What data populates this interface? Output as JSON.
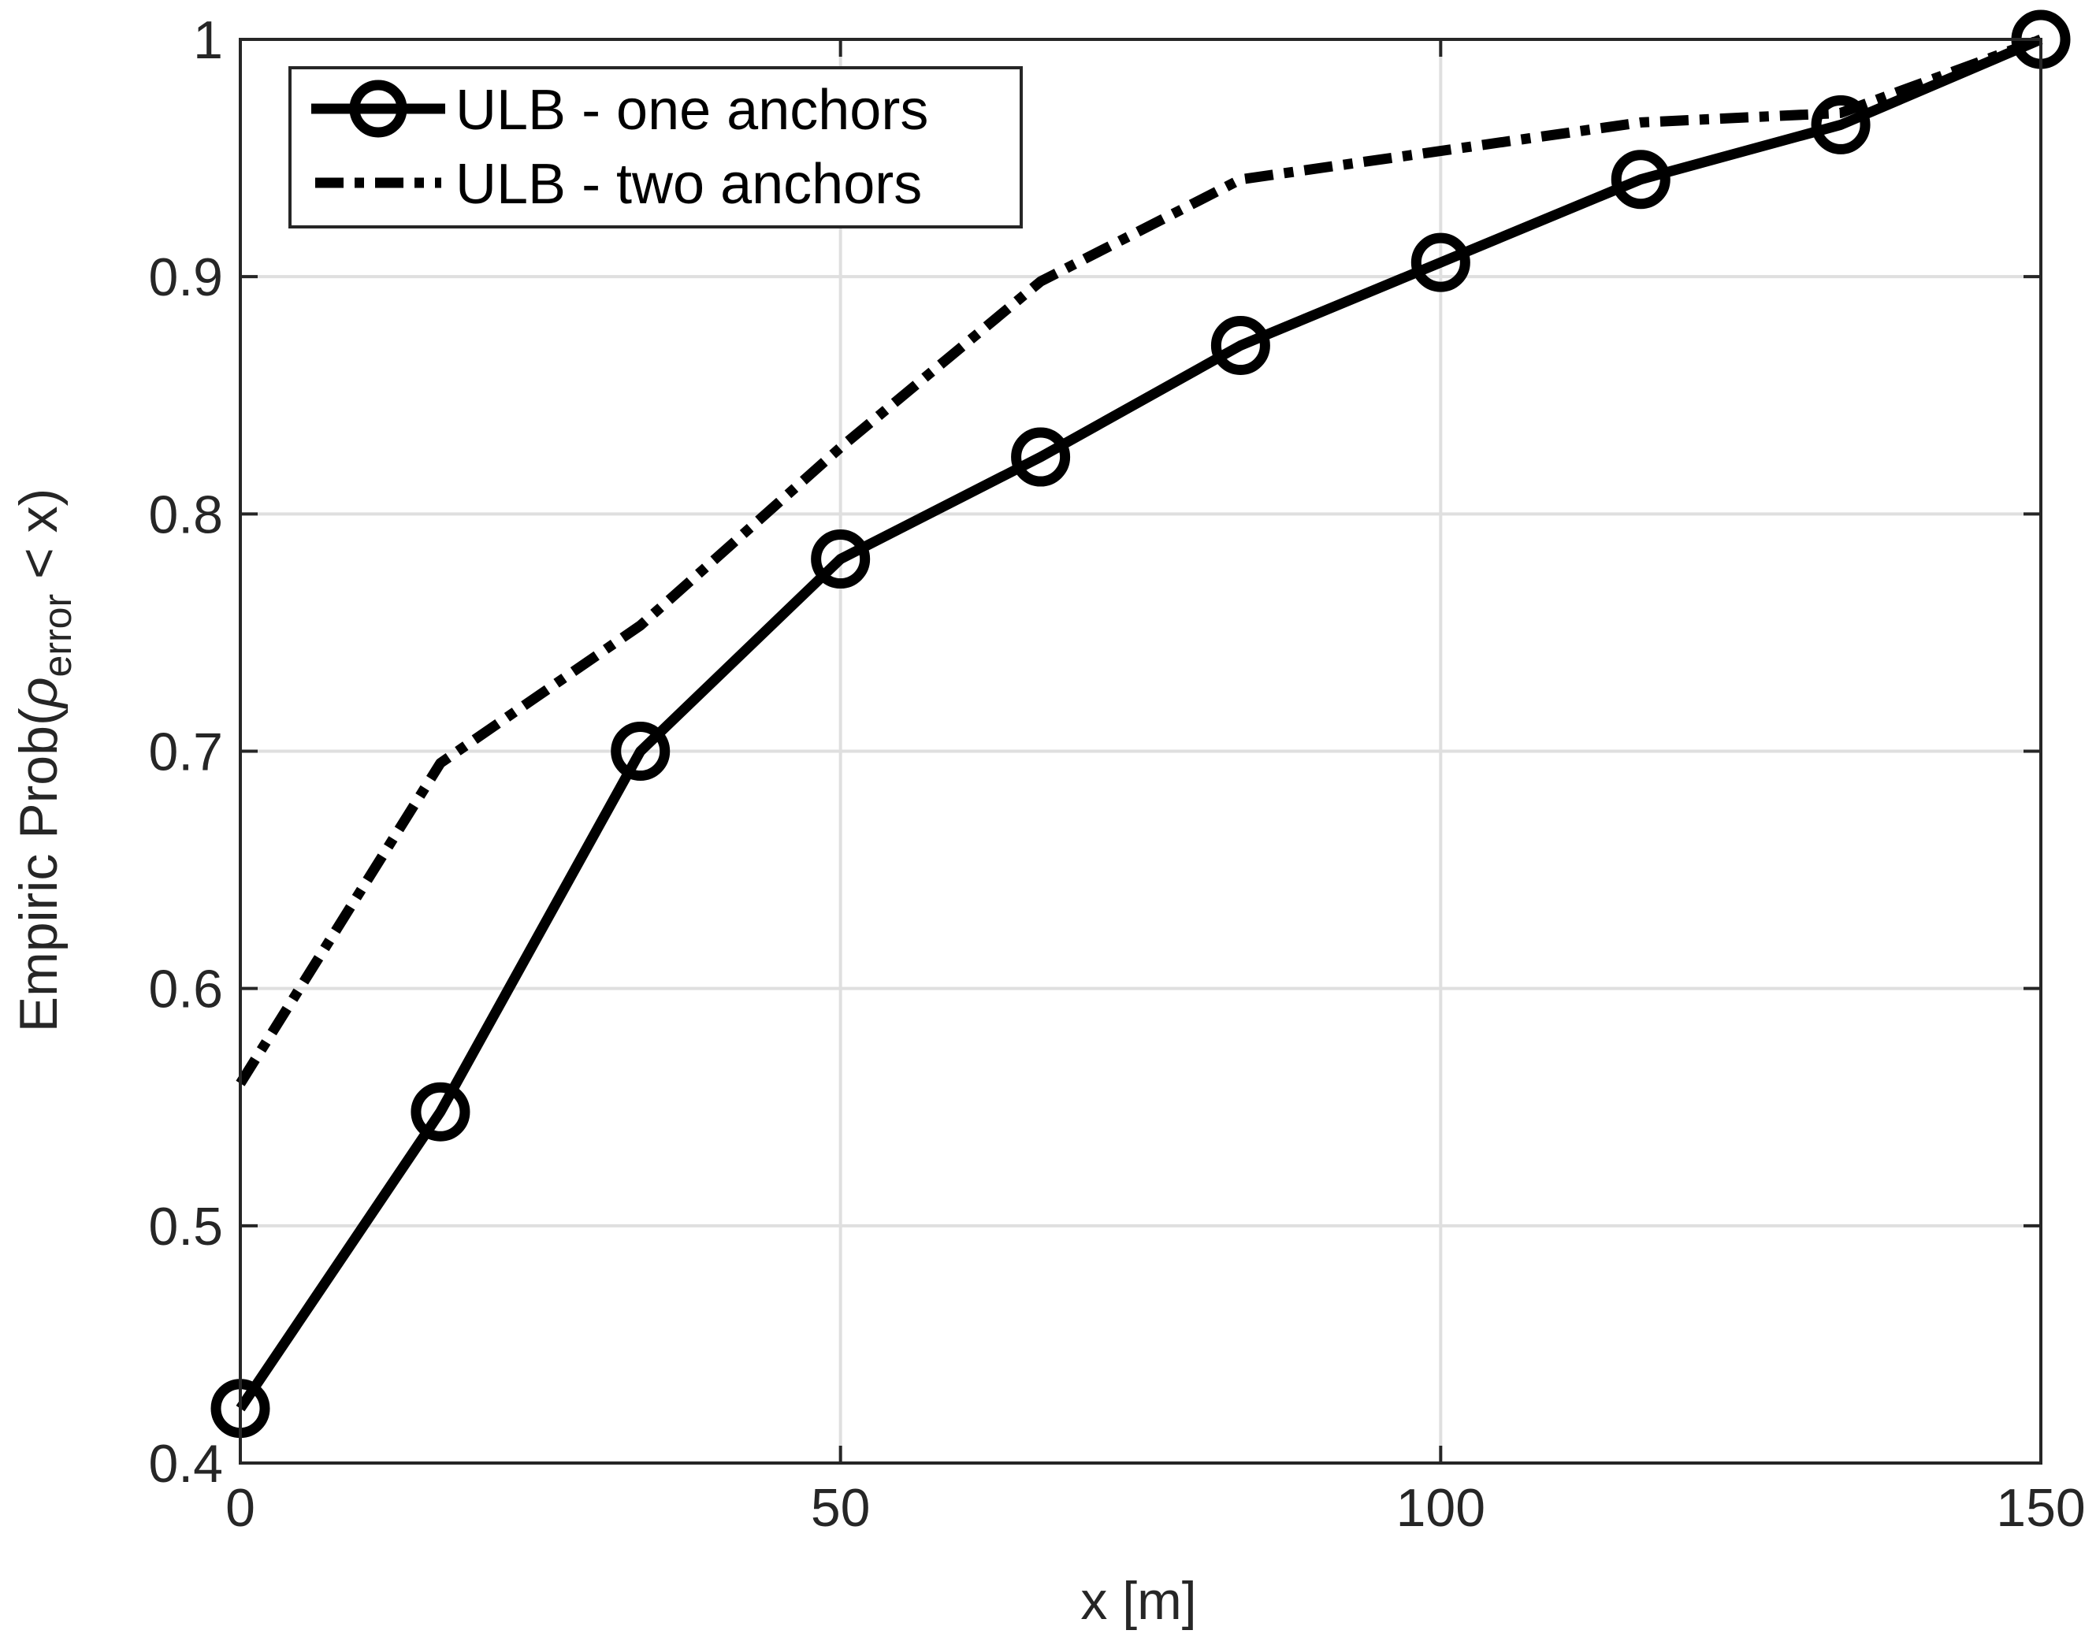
{
  "chart_data": {
    "type": "line",
    "title": "",
    "xlabel": "x [m]",
    "ylabel": {
      "prefix": "Empiric Prob(",
      "symbol": "ρ",
      "subscript": "error",
      "suffix": " < x)"
    },
    "xlim": [
      0,
      150
    ],
    "ylim": [
      0.4,
      1.0
    ],
    "xticks": [
      0,
      50,
      100,
      150
    ],
    "xtick_labels": [
      "0",
      "50",
      "100",
      "150"
    ],
    "yticks": [
      0.4,
      0.5,
      0.6,
      0.7,
      0.8,
      0.9,
      1.0
    ],
    "ytick_labels": [
      "0.4",
      "0.5",
      "0.6",
      "0.7",
      "0.8",
      "0.9",
      "1"
    ],
    "grid": true,
    "legend_position": "top-left",
    "series": [
      {
        "name": "ULB - one anchors",
        "style": "solid-circle",
        "color": "#000000",
        "x": [
          0,
          16.67,
          33.33,
          50,
          66.67,
          83.33,
          100,
          116.67,
          133.33,
          150
        ],
        "y": [
          0.423,
          0.548,
          0.7,
          0.781,
          0.824,
          0.871,
          0.906,
          0.941,
          0.964,
          1.0
        ]
      },
      {
        "name": "ULB - two anchors",
        "style": "dash-dot",
        "color": "#000000",
        "x": [
          0,
          16.67,
          33.33,
          50,
          66.67,
          83.33,
          100,
          116.67,
          133.33,
          150
        ],
        "y": [
          0.56,
          0.695,
          0.753,
          0.828,
          0.898,
          0.941,
          0.953,
          0.965,
          0.969,
          1.0
        ]
      }
    ]
  }
}
